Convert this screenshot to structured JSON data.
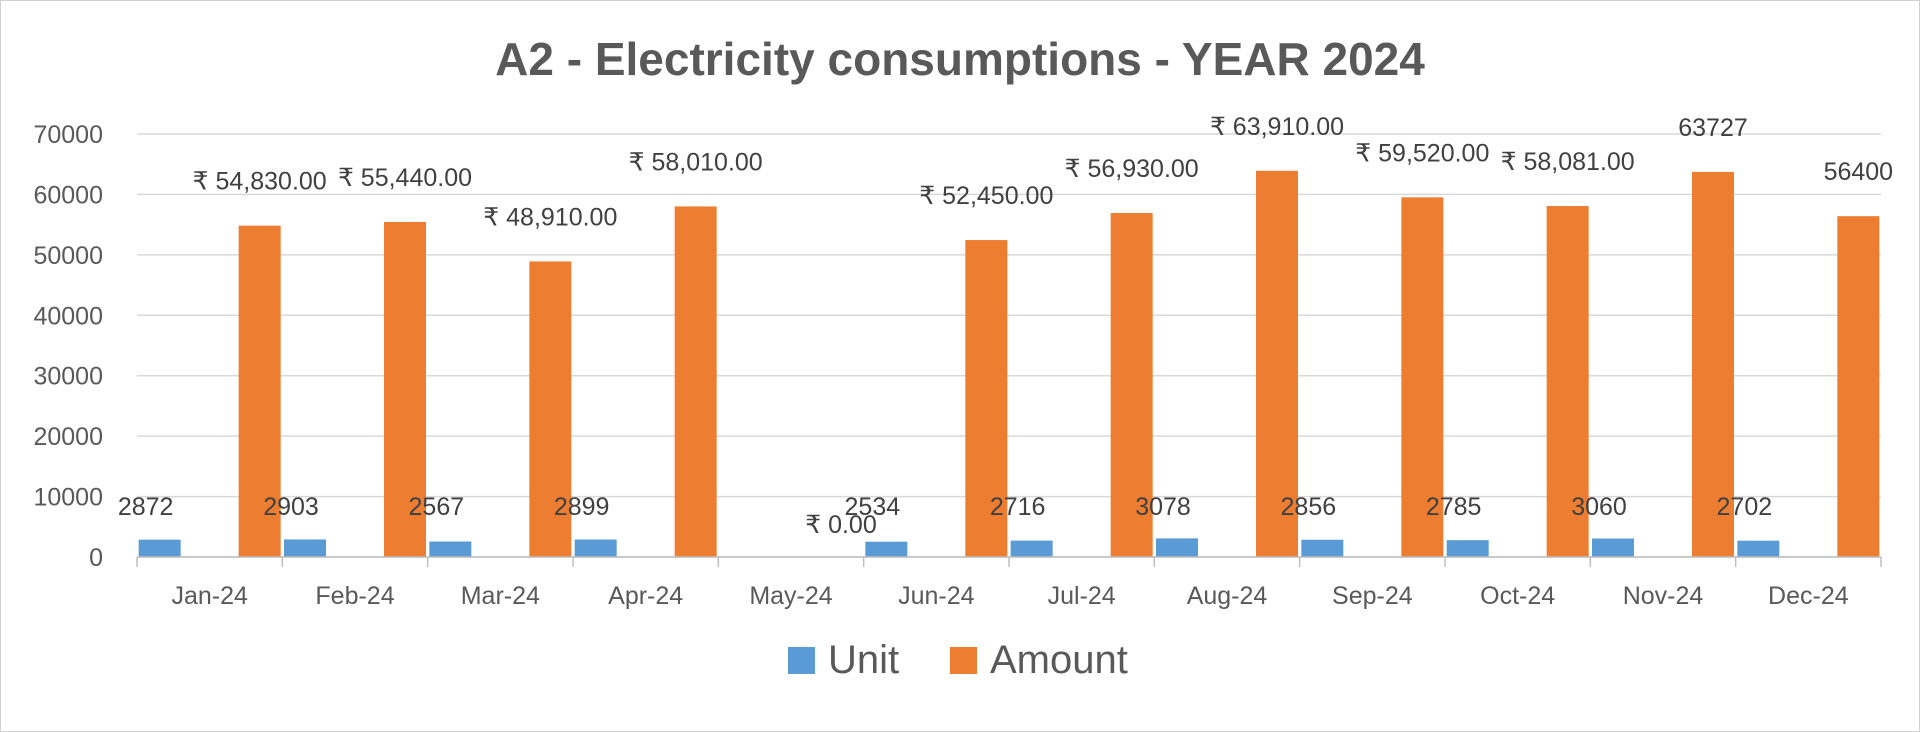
{
  "chart_data": {
    "type": "bar",
    "title": "A2 - Electricity consumptions - YEAR 2024",
    "xlabel": "",
    "ylabel": "",
    "categories": [
      "Jan-24",
      "Feb-24",
      "Mar-24",
      "Apr-24",
      "May-24",
      "Jun-24",
      "Jul-24",
      "Aug-24",
      "Sep-24",
      "Oct-24",
      "Nov-24",
      "Dec-24"
    ],
    "ylim": [
      0,
      70000
    ],
    "yticks": [
      "0",
      "10000",
      "20000",
      "30000",
      "40000",
      "50000",
      "60000",
      "70000"
    ],
    "grid": true,
    "legend_position": "bottom",
    "series": [
      {
        "name": "Unit",
        "color": "#5B9BD5",
        "values": [
          2872,
          2903,
          2567,
          2899,
          0,
          2534,
          2716,
          3078,
          2856,
          2785,
          3060,
          2702
        ],
        "labels": [
          "2872",
          "2903",
          "2567",
          "2899",
          "",
          "2534",
          "2716",
          "3078",
          "2856",
          "2785",
          "3060",
          "2702"
        ]
      },
      {
        "name": "Amount",
        "color": "#ED7D31",
        "values": [
          54830,
          55440,
          48910,
          58010,
          0,
          52450,
          56930,
          63910,
          59520,
          58081,
          63727,
          56400
        ],
        "labels": [
          "₹ 54,830.00",
          "₹ 55,440.00",
          "₹ 48,910.00",
          "₹ 58,010.00",
          "₹ 0.00",
          "₹ 52,450.00",
          "₹ 56,930.00",
          "₹ 63,910.00",
          "₹ 59,520.00",
          "₹ 58,081.00",
          "63727",
          "56400"
        ]
      }
    ]
  }
}
